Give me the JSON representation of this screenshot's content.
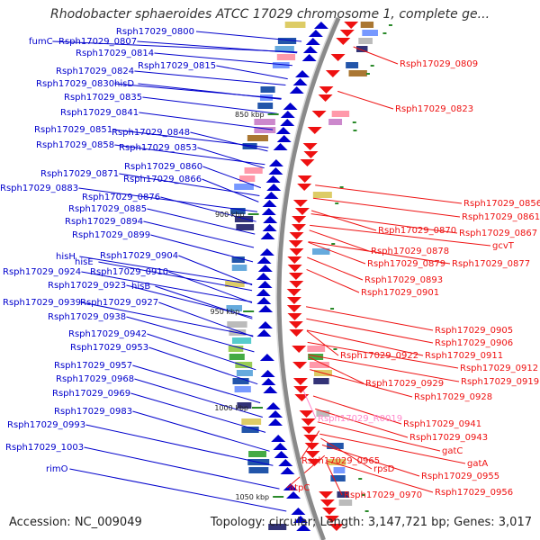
{
  "header": {
    "title": "Rhodobacter sphaeroides ATCC 17029 chromosome 1, complete ge..."
  },
  "footer": {
    "accession": "Accession: NC_009049",
    "summary": "Topology: circular; Length: 3,147,721 bp; Genes: 3,017"
  },
  "colors": {
    "backbone": "#8a8a8a",
    "forward_strand": "#0000cc",
    "reverse_strand": "#ee1111",
    "rna_gene": "#ff88cc",
    "tick_marker": "#2a8a2a"
  },
  "map": {
    "position_markers": [
      "850 kbp",
      "900 kbp",
      "950 kbp",
      "1000 kbp",
      "1050 kbp"
    ],
    "forward_labels": [
      "Rsph17029_0800",
      "fumC",
      "Rsph17029_0807",
      "Rsph17029_0814",
      "Rsph17029_0815",
      "Rsph17029_0824",
      "Rsph17029_0830",
      "hisD",
      "Rsph17029_0835",
      "Rsph17029_0841",
      "Rsph17029_0851",
      "Rsph17029_0848",
      "Rsph17029_0858",
      "Rsph17029_0853",
      "Rsph17029_0860",
      "Rsph17029_0871",
      "Rsph17029_0866",
      "Rsph17029_0883",
      "Rsph17029_0876",
      "Rsph17029_0885",
      "Rsph17029_0894",
      "Rsph17029_0899",
      "hisH",
      "hisE",
      "Rsph17029_0904",
      "Rsph17029_0924",
      "Rsph17029_0910",
      "Rsph17029_0923",
      "hisB",
      "Rsph17029_0939",
      "Rsph17029_0927",
      "Rsph17029_0938",
      "Rsph17029_0942",
      "Rsph17029_0953",
      "Rsph17029_0957",
      "Rsph17029_0968",
      "Rsph17029_0969",
      "Rsph17029_0983",
      "Rsph17029_0993",
      "Rsph17029_1003",
      "rimO"
    ],
    "reverse_labels": [
      "Rsph17029_0809",
      "Rsph17029_0823",
      "Rsph17029_0856",
      "Rsph17029_0861",
      "Rsph17029_0867",
      "Rsph17029_0870",
      "gcvT",
      "Rsph17029_0878",
      "Rsph17029_0879",
      "Rsph17029_0877",
      "Rsph17029_0893",
      "Rsph17029_0901",
      "Rsph17029_0905",
      "Rsph17029_0906",
      "Rsph17029_0922",
      "Rsph17029_0911",
      "Rsph17029_0912",
      "Rsph17029_0929",
      "Rsph17029_0919",
      "Rsph17029_0928",
      "Rsph17029_0941",
      "Rsph17029_0943",
      "gatC",
      "gatA",
      "Rsph17029_0965",
      "rpsD",
      "Rsph17029_0955",
      "Rsph17029_0956",
      "atpC",
      "Rsph17029_0970"
    ],
    "rna_labels": [
      "Rsph17029_R0019"
    ]
  }
}
